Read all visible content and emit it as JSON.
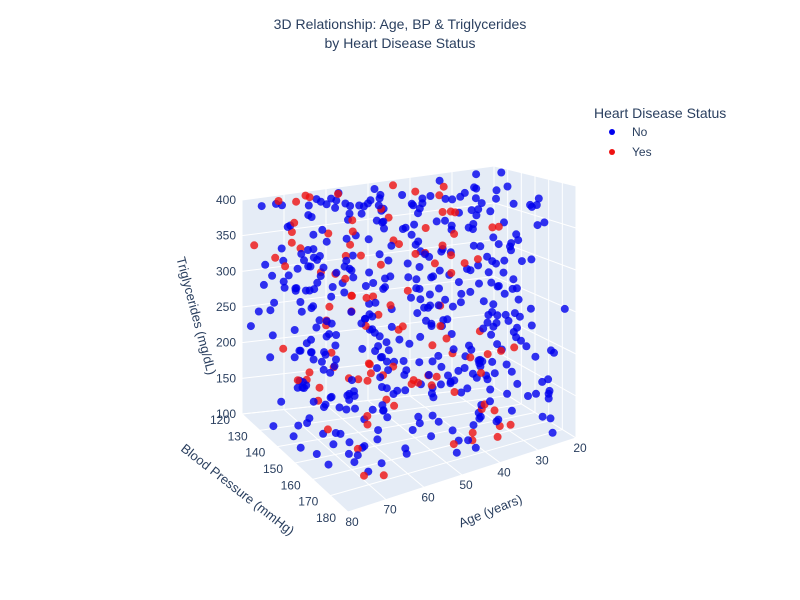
{
  "chart_data": {
    "type": "scatter",
    "title_lines": [
      "3D Relationship: Age, BP & Triglycerides",
      "by Heart Disease Status"
    ],
    "axes": {
      "x": {
        "label": "Age (years)",
        "range": [
          20,
          82
        ],
        "ticks": [
          20,
          30,
          40,
          50,
          60,
          70,
          80
        ]
      },
      "y": {
        "label": "Blood Pressure (mmHg)",
        "range": [
          120,
          185
        ],
        "ticks": [
          120,
          130,
          140,
          150,
          160,
          170,
          180
        ]
      },
      "z": {
        "label": "Triglycerides (mg/dL)",
        "range": [
          100,
          400
        ],
        "ticks": [
          100,
          150,
          200,
          250,
          300,
          350,
          400
        ]
      }
    },
    "legend": {
      "title": "Heart Disease Status",
      "placement": "top-right",
      "entries": [
        {
          "name": "No",
          "color": "#0000ee"
        },
        {
          "name": "Yes",
          "color": "#ee1111"
        }
      ]
    },
    "series": [
      {
        "name": "No",
        "color": "#0000ee",
        "count": 420,
        "note_x_range": [
          20,
          80
        ],
        "note_y_range": [
          120,
          180
        ],
        "note_z_range": [
          100,
          400
        ]
      },
      {
        "name": "Yes",
        "color": "#ee1111",
        "count": 110,
        "note_x_range": [
          30,
          80
        ],
        "note_y_range": [
          120,
          180
        ],
        "note_z_range": [
          100,
          400
        ]
      }
    ],
    "grid": true,
    "background_color": "#e5ecf6"
  }
}
